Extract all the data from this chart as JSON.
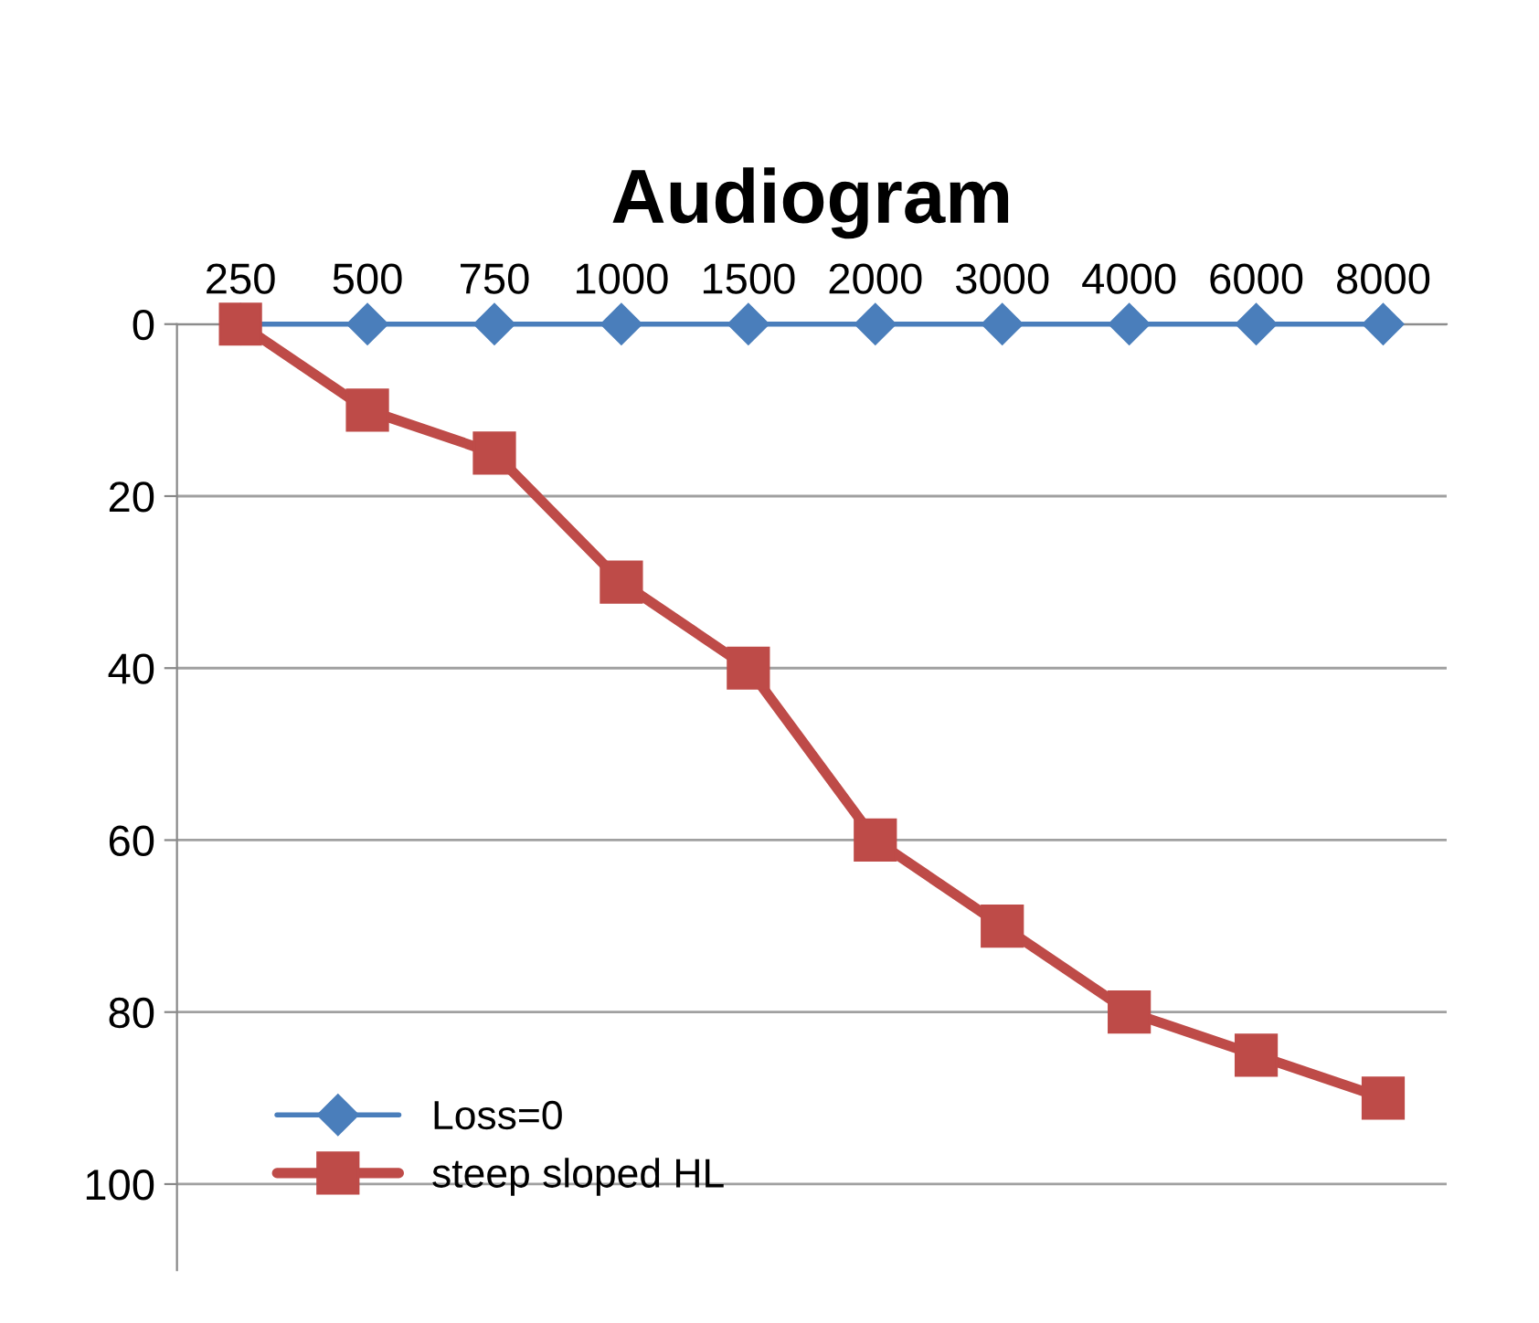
{
  "chart_data": {
    "type": "line",
    "title": "Audiogram",
    "categories": [
      "250",
      "500",
      "750",
      "1000",
      "1500",
      "2000",
      "3000",
      "4000",
      "6000",
      "8000"
    ],
    "series": [
      {
        "name": "Loss=0",
        "color": "#4a7ebb",
        "marker": "diamond",
        "values": [
          0,
          0,
          0,
          0,
          0,
          0,
          0,
          0,
          0,
          0
        ]
      },
      {
        "name": "steep sloped HL",
        "color": "#be4b48",
        "marker": "square",
        "values": [
          0,
          10,
          15,
          30,
          40,
          60,
          70,
          80,
          85,
          90
        ]
      }
    ],
    "ylim": [
      110,
      0
    ],
    "yticks": [
      0,
      20,
      40,
      60,
      80,
      100
    ],
    "grid": "y",
    "legend": "bottom left"
  }
}
